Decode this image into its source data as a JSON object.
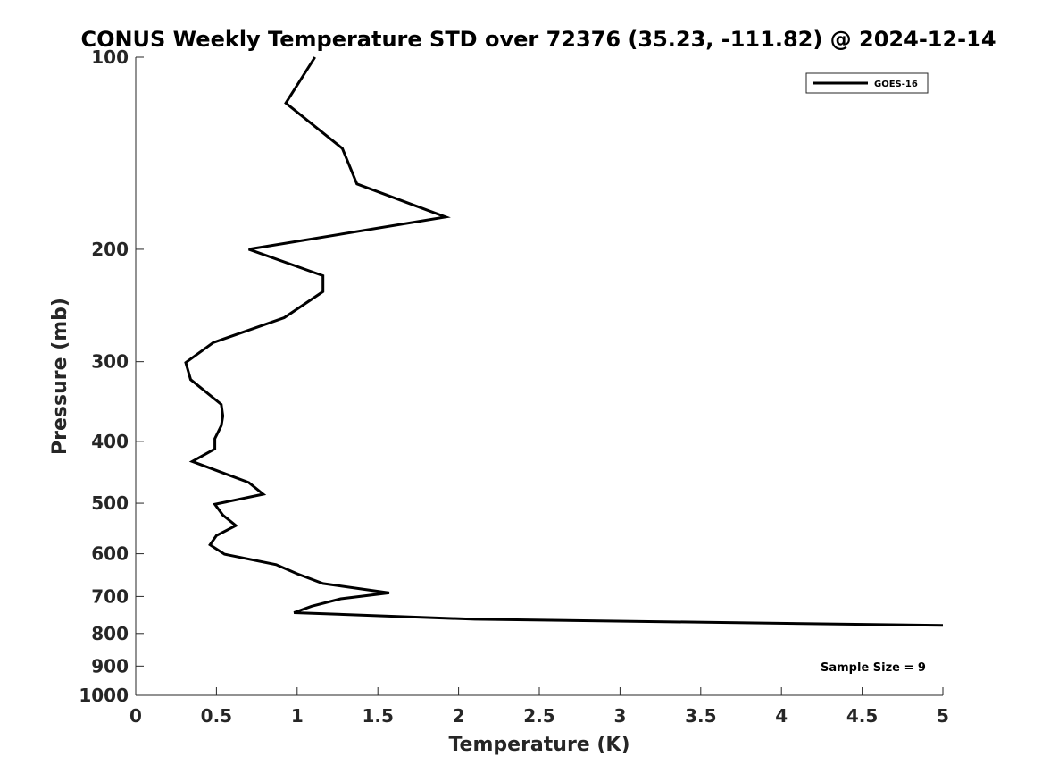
{
  "chart_data": {
    "type": "line",
    "title": "CONUS Weekly Temperature STD over 72376 (35.23, -111.82) @ 2024-12-14",
    "xlabel": "Temperature (K)",
    "ylabel": "Pressure (mb)",
    "xlim": [
      0,
      5
    ],
    "ylim": [
      1000,
      100
    ],
    "yscale": "log",
    "y_reversed": true,
    "xticks": [
      "0",
      "0.5",
      "1",
      "1.5",
      "2",
      "2.5",
      "3",
      "3.5",
      "4",
      "4.5",
      "5"
    ],
    "yticks": [
      "100",
      "200",
      "300",
      "400",
      "500",
      "600",
      "700",
      "800",
      "900",
      "1000"
    ],
    "grid": false,
    "legend_position": "top-right",
    "annotation": "Sample Size = 9",
    "series": [
      {
        "name": "GOES-16",
        "color": "#000000",
        "points": [
          {
            "x": 1.11,
            "y": 100
          },
          {
            "x": 0.93,
            "y": 118
          },
          {
            "x": 1.28,
            "y": 139
          },
          {
            "x": 1.37,
            "y": 158
          },
          {
            "x": 1.92,
            "y": 178
          },
          {
            "x": 0.7,
            "y": 200
          },
          {
            "x": 1.16,
            "y": 220
          },
          {
            "x": 1.16,
            "y": 233
          },
          {
            "x": 0.92,
            "y": 256
          },
          {
            "x": 0.48,
            "y": 280
          },
          {
            "x": 0.31,
            "y": 301
          },
          {
            "x": 0.34,
            "y": 320
          },
          {
            "x": 0.53,
            "y": 350
          },
          {
            "x": 0.54,
            "y": 365
          },
          {
            "x": 0.53,
            "y": 378
          },
          {
            "x": 0.49,
            "y": 396
          },
          {
            "x": 0.49,
            "y": 411
          },
          {
            "x": 0.35,
            "y": 430
          },
          {
            "x": 0.7,
            "y": 464
          },
          {
            "x": 0.79,
            "y": 484
          },
          {
            "x": 0.49,
            "y": 502
          },
          {
            "x": 0.54,
            "y": 522
          },
          {
            "x": 0.62,
            "y": 542
          },
          {
            "x": 0.5,
            "y": 562
          },
          {
            "x": 0.46,
            "y": 581
          },
          {
            "x": 0.55,
            "y": 601
          },
          {
            "x": 0.87,
            "y": 624
          },
          {
            "x": 1.0,
            "y": 645
          },
          {
            "x": 1.16,
            "y": 668
          },
          {
            "x": 1.57,
            "y": 691
          },
          {
            "x": 1.27,
            "y": 706
          },
          {
            "x": 1.09,
            "y": 725
          },
          {
            "x": 0.98,
            "y": 742
          },
          {
            "x": 2.1,
            "y": 760
          },
          {
            "x": 5.0,
            "y": 777
          }
        ]
      }
    ]
  }
}
